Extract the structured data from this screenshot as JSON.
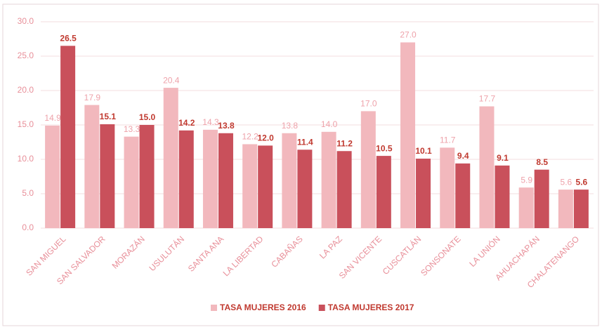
{
  "chart_data": {
    "type": "bar",
    "categories": [
      "SAN MIGUEL",
      "SAN SALVADOR",
      "MORAZÁN",
      "USULUTÁN",
      "SANTA ANA",
      "LA LIBERTAD",
      "CABAÑAS",
      "LA PAZ",
      "SAN VICENTE",
      "CUSCATLÁN",
      "SONSONATE",
      "LA UNIÓN",
      "AHUACHAPÁN",
      "CHALATENANGO"
    ],
    "series": [
      {
        "name": "TASA MUJERES 2016",
        "color": "#f2b8bd",
        "values": [
          14.9,
          17.9,
          13.3,
          20.4,
          14.3,
          12.2,
          13.8,
          14.0,
          17.0,
          27.0,
          11.7,
          17.7,
          5.9,
          5.6
        ],
        "value_labels": [
          "14.9",
          "17.9",
          "13.3",
          "20.4",
          "14.3",
          "12.2",
          "13.8",
          "14.0",
          "17.0",
          "27.0",
          "11.7",
          "17.7",
          "5.9",
          "5.6"
        ]
      },
      {
        "name": "TASA MUJERES 2017",
        "color": "#c9505b",
        "values": [
          26.5,
          15.1,
          15.0,
          14.2,
          13.8,
          12.0,
          11.4,
          11.2,
          10.5,
          10.1,
          9.4,
          9.1,
          8.5,
          5.6
        ],
        "value_labels": [
          "26.5",
          "15.1",
          "15.0",
          "14.2",
          "13.8",
          "12.0",
          "11.4",
          "11.2",
          "10.5",
          "10.1",
          "9.4",
          "9.1",
          "8.5",
          "5.6"
        ]
      }
    ],
    "ylim": [
      0,
      30
    ],
    "yticks": [
      {
        "value": 0,
        "label": "0.0"
      },
      {
        "value": 5,
        "label": "5.0"
      },
      {
        "value": 10,
        "label": "10.0"
      },
      {
        "value": 15,
        "label": "15.0"
      },
      {
        "value": 20,
        "label": "20.0"
      },
      {
        "value": 25,
        "label": "25.0"
      },
      {
        "value": 30,
        "label": "30.0"
      }
    ],
    "grid": true,
    "legend": "bottom"
  }
}
